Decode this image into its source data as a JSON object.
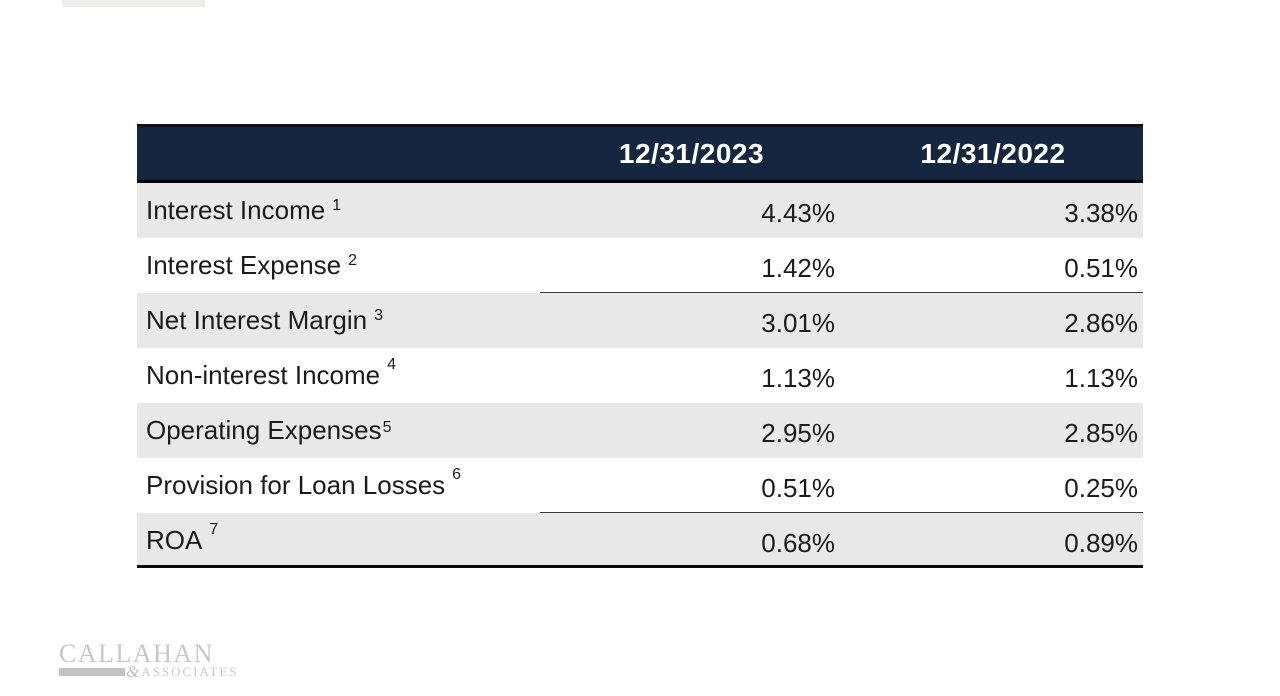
{
  "colors": {
    "header_bg": "#152740",
    "header_text": "#ffffff",
    "row_alt_bg": "#e8e8e8",
    "row_bg": "#ffffff",
    "text": "#1c1c1c",
    "partial_rule": "#3a3a3a",
    "rule_dark": "#0b0b0b",
    "logo_gray": "#c8c8ca",
    "logo_bar": "#c2c2c4",
    "topbar": "#efede8"
  },
  "table": {
    "columns": [
      {
        "label": ""
      },
      {
        "label": "12/31/2023"
      },
      {
        "label": "12/31/2022"
      }
    ],
    "rows": [
      {
        "label": "Interest Income",
        "footnote": "1",
        "values": [
          "4.43%",
          "3.38%"
        ]
      },
      {
        "label": "Interest Expense",
        "footnote": "2",
        "values": [
          "1.42%",
          "0.51%"
        ]
      },
      {
        "label": "Net Interest Margin",
        "footnote": "3",
        "values": [
          "3.01%",
          "2.86%"
        ]
      },
      {
        "label": "Non-interest Income",
        "footnote": "4",
        "values": [
          "1.13%",
          "1.13%"
        ]
      },
      {
        "label": "Operating Expenses",
        "footnote": "5",
        "values": [
          "2.95%",
          "2.85%"
        ]
      },
      {
        "label": "Provision for Loan Losses",
        "footnote": "6",
        "values": [
          "0.51%",
          "0.25%"
        ]
      },
      {
        "label": "ROA",
        "footnote": "7",
        "values": [
          "0.68%",
          "0.89%"
        ]
      }
    ]
  },
  "logo": {
    "name": "CALLAHAN",
    "ampersand": "&",
    "subtext": "ASSOCIATES"
  },
  "chart_data": {
    "type": "table",
    "title": "",
    "columns": [
      "12/31/2023",
      "12/31/2022"
    ],
    "row_labels": [
      "Interest Income",
      "Interest Expense",
      "Net Interest Margin",
      "Non-interest Income",
      "Operating Expenses",
      "Provision for Loan Losses",
      "ROA"
    ],
    "footnote_markers": [
      1,
      2,
      3,
      4,
      5,
      6,
      7
    ],
    "series": [
      {
        "name": "12/31/2023",
        "values_pct": [
          4.43,
          1.42,
          3.01,
          1.13,
          2.95,
          0.51,
          0.68
        ]
      },
      {
        "name": "12/31/2022",
        "values_pct": [
          3.38,
          0.51,
          2.86,
          1.13,
          2.85,
          0.25,
          0.89
        ]
      }
    ],
    "notes": "Alternating shaded rows; sum rules under Interest Expense and Provision for Loan Losses value columns; heavy rule under ROA row"
  }
}
